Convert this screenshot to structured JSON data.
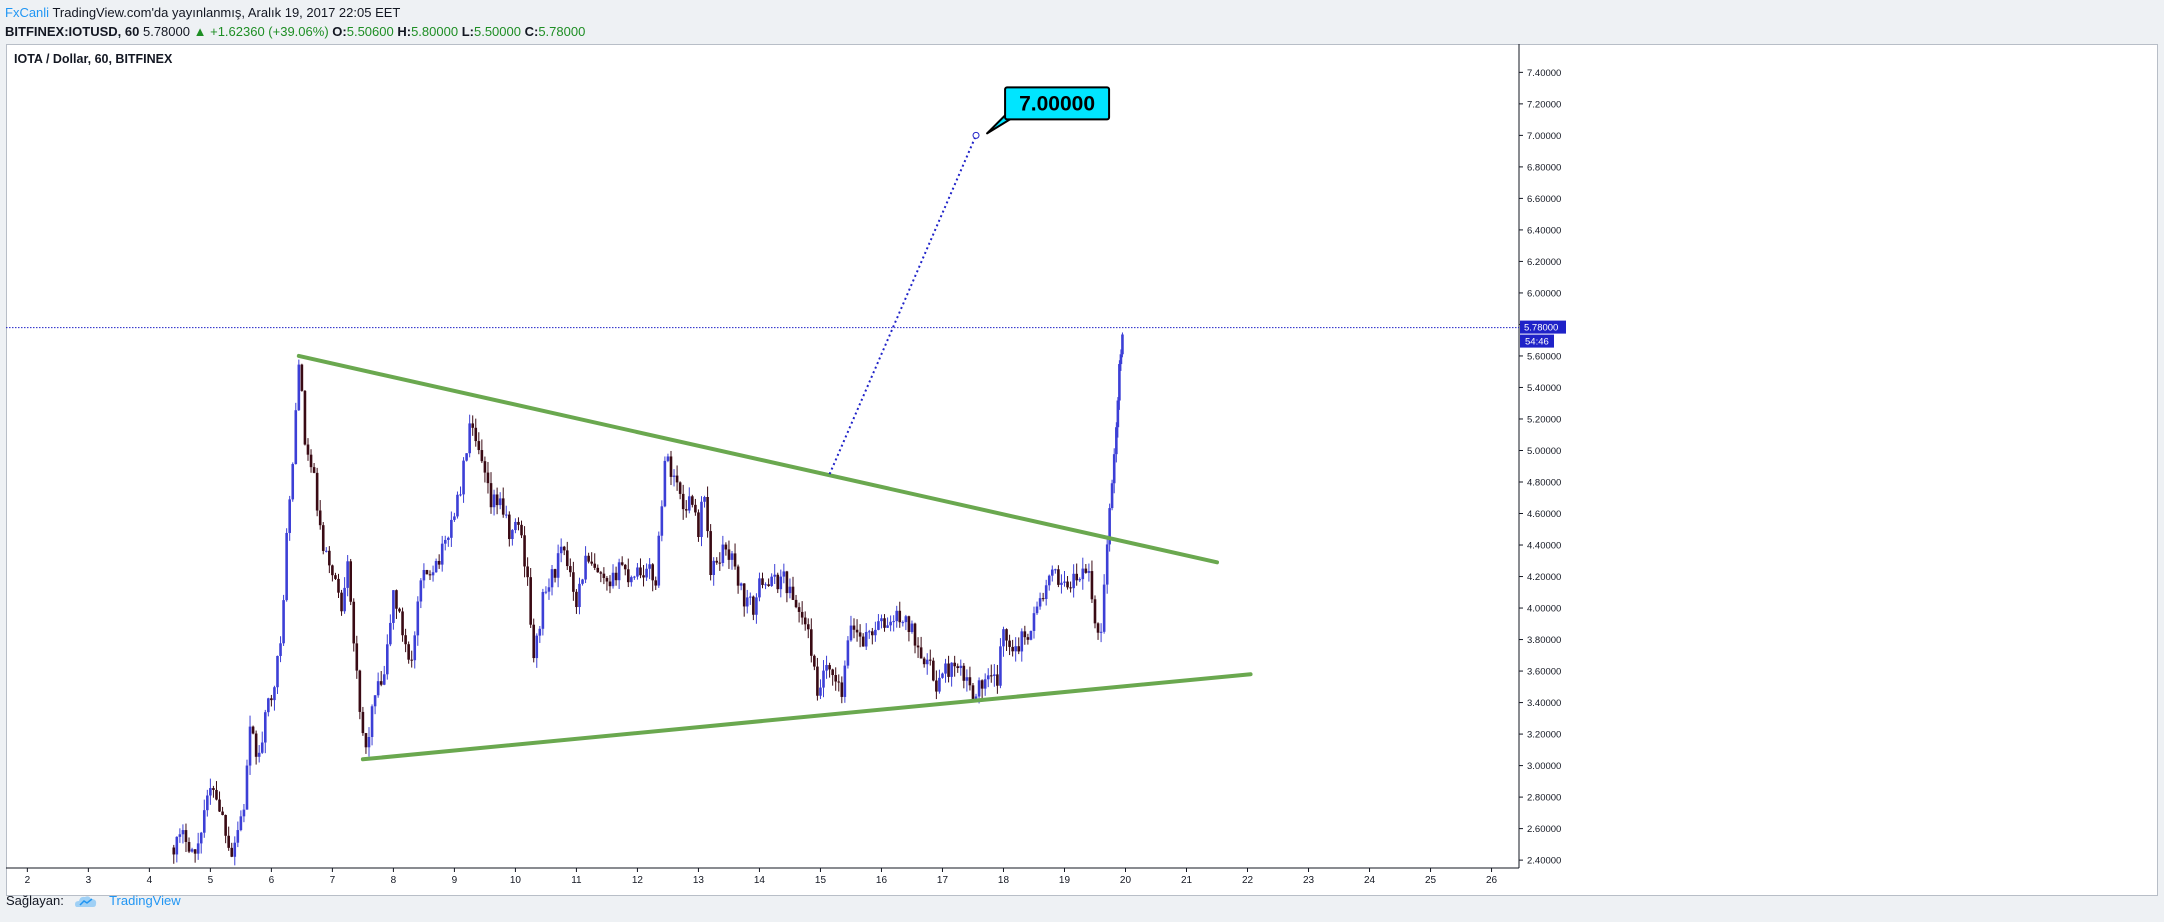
{
  "header": {
    "author": "FxCanli",
    "published_text": " TradingView.com'da yayınlanmış, Aralık 19, 2017 22:05 EET",
    "symbol": "BITFINEX:IOTUSD, 60",
    "last": "5.78000",
    "change_arrow": "▲",
    "change": "+1.62360 (+39.06%)",
    "o_label": "O:",
    "o_value": "5.50600",
    "h_label": "H:",
    "h_value": "5.80000",
    "l_label": "L:",
    "l_value": "5.50000",
    "c_label": "C:",
    "c_value": "5.78000"
  },
  "footer": {
    "source_label": "Sağlayan:",
    "source_name": "TradingView",
    "logo_icon": "tradingview-cloud-icon"
  },
  "chart_data": {
    "type": "candlestick",
    "title": "IOTA / Dollar, 60, BITFINEX",
    "xlabel": "",
    "ylabel": "",
    "x_ticks": [
      "2",
      "3",
      "4",
      "5",
      "6",
      "7",
      "8",
      "9",
      "10",
      "11",
      "12",
      "13",
      "14",
      "15",
      "16",
      "17",
      "18",
      "19",
      "20",
      "21",
      "22",
      "23",
      "24",
      "25",
      "26"
    ],
    "x_range": [
      1.65,
      26.45
    ],
    "y_ticks": [
      "2.40000",
      "2.60000",
      "2.80000",
      "3.00000",
      "3.20000",
      "3.40000",
      "3.60000",
      "3.80000",
      "4.00000",
      "4.20000",
      "4.40000",
      "4.60000",
      "4.80000",
      "5.00000",
      "5.20000",
      "5.40000",
      "5.60000",
      "5.80000",
      "6.00000",
      "6.20000",
      "6.40000",
      "6.60000",
      "6.80000",
      "7.00000",
      "7.20000",
      "7.40000"
    ],
    "y_range": [
      2.35,
      7.58
    ],
    "price_line": {
      "value": 5.78,
      "label": "5.78000",
      "countdown": "54:46",
      "color": "#1f22c8"
    },
    "trendlines": [
      {
        "name": "upper-resistance",
        "points": [
          [
            6.45,
            5.6
          ],
          [
            21.5,
            4.29
          ]
        ],
        "color": "#6aa84f"
      },
      {
        "name": "lower-support",
        "points": [
          [
            7.5,
            3.04
          ],
          [
            22.05,
            3.58
          ]
        ],
        "color": "#6aa84f"
      }
    ],
    "projection": {
      "from": [
        15.15,
        4.85
      ],
      "to": [
        17.55,
        7.0
      ],
      "color": "#1f22c8"
    },
    "target_label": {
      "text": "7.00000",
      "anchor": [
        17.6,
        7.0
      ],
      "color": "#00e5ff"
    },
    "candle_up_color": "#3c3fd6",
    "candle_down_color": "#3a0a14",
    "anchors": [
      [
        4.35,
        2.48
      ],
      [
        4.6,
        2.56
      ],
      [
        4.75,
        2.42
      ],
      [
        4.9,
        2.72
      ],
      [
        5.05,
        2.88
      ],
      [
        5.25,
        2.6
      ],
      [
        5.35,
        2.45
      ],
      [
        5.55,
        2.75
      ],
      [
        5.65,
        3.2
      ],
      [
        5.8,
        3.05
      ],
      [
        5.95,
        3.4
      ],
      [
        6.05,
        3.55
      ],
      [
        6.15,
        3.75
      ],
      [
        6.25,
        4.45
      ],
      [
        6.35,
        4.9
      ],
      [
        6.45,
        5.6
      ],
      [
        6.55,
        5.05
      ],
      [
        6.7,
        4.8
      ],
      [
        6.85,
        4.35
      ],
      [
        7.0,
        4.25
      ],
      [
        7.15,
        4.0
      ],
      [
        7.25,
        4.35
      ],
      [
        7.35,
        3.8
      ],
      [
        7.45,
        3.3
      ],
      [
        7.55,
        3.1
      ],
      [
        7.7,
        3.45
      ],
      [
        7.85,
        3.55
      ],
      [
        8.0,
        4.1
      ],
      [
        8.15,
        3.85
      ],
      [
        8.3,
        3.65
      ],
      [
        8.45,
        4.15
      ],
      [
        8.6,
        4.25
      ],
      [
        8.8,
        4.35
      ],
      [
        8.95,
        4.55
      ],
      [
        9.1,
        4.75
      ],
      [
        9.25,
        5.15
      ],
      [
        9.45,
        4.9
      ],
      [
        9.6,
        4.65
      ],
      [
        9.75,
        4.7
      ],
      [
        9.9,
        4.45
      ],
      [
        10.05,
        4.55
      ],
      [
        10.2,
        4.2
      ],
      [
        10.3,
        3.65
      ],
      [
        10.45,
        4.05
      ],
      [
        10.6,
        4.2
      ],
      [
        10.75,
        4.35
      ],
      [
        10.9,
        4.25
      ],
      [
        11.0,
        4.05
      ],
      [
        11.15,
        4.3
      ],
      [
        11.35,
        4.2
      ],
      [
        11.55,
        4.1
      ],
      [
        11.7,
        4.3
      ],
      [
        11.85,
        4.2
      ],
      [
        12.0,
        4.25
      ],
      [
        12.2,
        4.22
      ],
      [
        12.3,
        4.18
      ],
      [
        12.45,
        4.95
      ],
      [
        12.6,
        4.85
      ],
      [
        12.75,
        4.65
      ],
      [
        12.9,
        4.7
      ],
      [
        13.0,
        4.5
      ],
      [
        13.1,
        4.75
      ],
      [
        13.2,
        4.2
      ],
      [
        13.3,
        4.3
      ],
      [
        13.45,
        4.4
      ],
      [
        13.6,
        4.25
      ],
      [
        13.75,
        4.05
      ],
      [
        13.9,
        4.0
      ],
      [
        14.05,
        4.2
      ],
      [
        14.2,
        4.15
      ],
      [
        14.4,
        4.2
      ],
      [
        14.55,
        4.05
      ],
      [
        14.7,
        3.95
      ],
      [
        14.85,
        3.75
      ],
      [
        14.95,
        3.4
      ],
      [
        15.05,
        3.6
      ],
      [
        15.2,
        3.55
      ],
      [
        15.35,
        3.45
      ],
      [
        15.5,
        3.9
      ],
      [
        15.7,
        3.8
      ],
      [
        15.9,
        3.88
      ],
      [
        16.1,
        3.9
      ],
      [
        16.3,
        3.95
      ],
      [
        16.5,
        3.85
      ],
      [
        16.7,
        3.7
      ],
      [
        16.9,
        3.52
      ],
      [
        17.1,
        3.62
      ],
      [
        17.3,
        3.58
      ],
      [
        17.5,
        3.48
      ],
      [
        17.7,
        3.52
      ],
      [
        17.9,
        3.55
      ],
      [
        18.0,
        3.85
      ],
      [
        18.2,
        3.75
      ],
      [
        18.4,
        3.85
      ],
      [
        18.6,
        4.05
      ],
      [
        18.8,
        4.2
      ],
      [
        18.95,
        4.18
      ],
      [
        19.1,
        4.15
      ],
      [
        19.25,
        4.2
      ],
      [
        19.4,
        4.22
      ],
      [
        19.5,
        3.9
      ],
      [
        19.6,
        3.85
      ],
      [
        19.7,
        4.45
      ],
      [
        19.78,
        4.75
      ],
      [
        19.85,
        5.2
      ],
      [
        19.9,
        5.5
      ],
      [
        19.95,
        5.78
      ]
    ]
  }
}
